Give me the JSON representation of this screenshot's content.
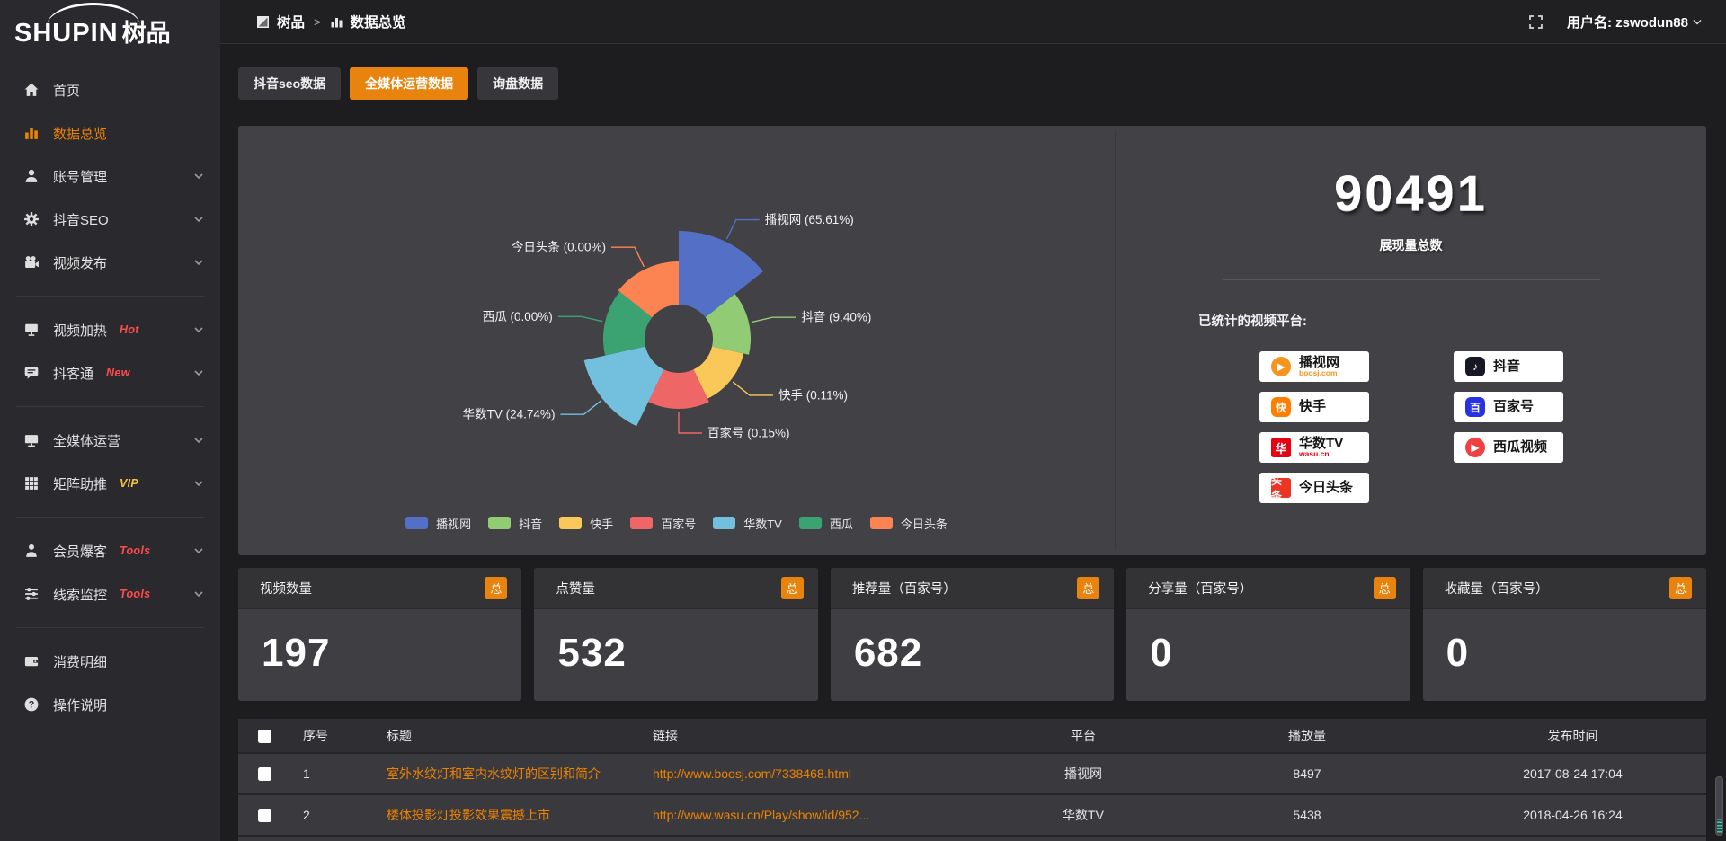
{
  "brand": {
    "logo_main": "SHUPIN",
    "logo_cjk": "树品"
  },
  "header": {
    "breadcrumb_root": "树品",
    "breadcrumb_sep": ">",
    "breadcrumb_current": "数据总览",
    "username_label": "用户名: zswodun88"
  },
  "sidebar": {
    "groups": [
      {
        "items": [
          {
            "label": "首页",
            "icon": "home"
          },
          {
            "label": "数据总览",
            "icon": "bar-chart"
          },
          {
            "label": "账号管理",
            "icon": "user"
          },
          {
            "label": "抖音SEO",
            "icon": "gear"
          },
          {
            "label": "视频发布",
            "icon": "video-camera"
          }
        ]
      },
      {
        "items": [
          {
            "label": "视频加热",
            "badge": "Hot",
            "badge_color": "#ff4b4b",
            "icon": "signboard"
          },
          {
            "label": "抖客通",
            "badge": "New",
            "badge_color": "#ff4b4b",
            "icon": "chat"
          }
        ]
      },
      {
        "items": [
          {
            "label": "全媒体运营",
            "icon": "monitor"
          },
          {
            "label": "矩阵助推",
            "badge": "VIP",
            "badge_color": "#f6c33d",
            "icon": "grid"
          }
        ]
      },
      {
        "items": [
          {
            "label": "会员爆客",
            "badge": "Tools",
            "badge_color": "#ff4b4b",
            "icon": "person"
          },
          {
            "label": "线索监控",
            "badge": "Tools",
            "badge_color": "#ff4b4b",
            "icon": "sliders"
          }
        ]
      },
      {
        "items": [
          {
            "label": "消费明细",
            "icon": "wallet"
          },
          {
            "label": "操作说明",
            "icon": "question"
          }
        ]
      }
    ]
  },
  "tabs": [
    {
      "label": "抖音seo数据",
      "active": false
    },
    {
      "label": "全媒体运营数据",
      "active": true
    },
    {
      "label": "询盘数据",
      "active": false
    }
  ],
  "chart_data": {
    "type": "pie",
    "variant": "nightingale-rose",
    "categories": [
      "播视网",
      "抖音",
      "快手",
      "百家号",
      "华数TV",
      "西瓜",
      "今日头条"
    ],
    "values_pct": [
      65.61,
      9.4,
      0.11,
      0.15,
      24.74,
      0.0,
      0.0
    ],
    "colors": [
      "#5470c6",
      "#91cc75",
      "#fac858",
      "#ee6666",
      "#73c0de",
      "#3ba272",
      "#fc8452"
    ],
    "radii": [
      120,
      80,
      74,
      78,
      108,
      84,
      86
    ],
    "inner_radius": 38,
    "equal_angle_slices": true,
    "start_angle_deg": -90,
    "label_format": "{name} ({value}%)",
    "legend_position": "bottom"
  },
  "summary": {
    "total_value": "90491",
    "total_label": "展现量总数",
    "platforms_title": "已统计的视频平台:",
    "platform_columns": [
      [
        {
          "name": "播视网",
          "sub": "boosj.com",
          "sub_color": "#f7941d",
          "icon_glyph": "▶",
          "icon_color": "#f7941d",
          "icon_shape": "circle"
        },
        {
          "name": "快手",
          "icon_glyph": "快",
          "icon_color": "#ff7e00",
          "icon_shape": "rounded"
        },
        {
          "name": "华数TV",
          "sub": "wasu.cn",
          "sub_color": "#e60012",
          "icon_glyph": "华",
          "icon_color": "#e60012",
          "icon_shape": "burst"
        },
        {
          "name": "今日头条",
          "icon_glyph": "头条",
          "icon_color": "#ed3321",
          "icon_shape": "square"
        }
      ],
      [
        {
          "name": "抖音",
          "icon_glyph": "♪",
          "icon_color": "#161823",
          "icon_shape": "rounded"
        },
        {
          "name": "百家号",
          "icon_glyph": "百",
          "icon_color": "#2932e1",
          "icon_shape": "rounded"
        },
        {
          "name": "西瓜视频",
          "icon_glyph": "▶",
          "icon_color": "#f04142",
          "icon_shape": "circle"
        }
      ]
    ]
  },
  "stat_cards": [
    {
      "label": "视频数量",
      "badge": "总",
      "value": "197"
    },
    {
      "label": "点赞量",
      "badge": "总",
      "value": "532"
    },
    {
      "label": "推荐量（百家号）",
      "badge": "总",
      "value": "682"
    },
    {
      "label": "分享量（百家号）",
      "badge": "总",
      "value": "0"
    },
    {
      "label": "收藏量（百家号）",
      "badge": "总",
      "value": "0"
    }
  ],
  "table": {
    "headers": [
      "序号",
      "标题",
      "链接",
      "平台",
      "播放量",
      "发布时间"
    ],
    "rows": [
      {
        "num": "1",
        "title": "室外水纹灯和室内水纹灯的区别和简介",
        "link": "http://www.boosj.com/7338468.html",
        "platform": "播视网",
        "plays": "8497",
        "time": "2017-08-24 17:04"
      },
      {
        "num": "2",
        "title": "楼体投影灯投影效果震撼上市",
        "link": "http://www.wasu.cn/Play/show/id/952...",
        "platform": "华数TV",
        "plays": "5438",
        "time": "2018-04-26 16:24"
      }
    ]
  },
  "colors": {
    "accent": "#e8830d",
    "link": "#ef8201",
    "hot": "#ff4b4b",
    "vip": "#f6c33d"
  }
}
